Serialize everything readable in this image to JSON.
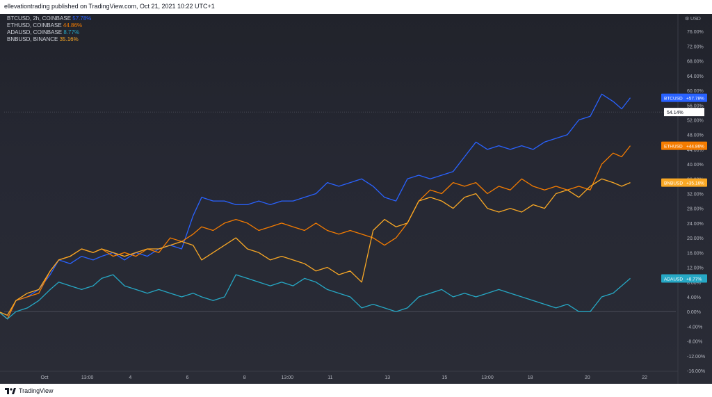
{
  "header": {
    "title": "ellevationtrading published on TradingView.com, Oct 21, 2021 10:22 UTC+1"
  },
  "footer": {
    "brand": "TradingView"
  },
  "legend": [
    {
      "symbol": "BTCUSD, 2h, COINBASE",
      "value": "57.78%",
      "color": "#2962ff"
    },
    {
      "symbol": "ETHUSD, COINBASE",
      "value": "44.86%",
      "color": "#f57c00"
    },
    {
      "symbol": "ADAUSD, COINBASE",
      "value": "8.77%",
      "color": "#26a8c5"
    },
    {
      "symbol": "BNBUSD, BINANCE",
      "value": "35.16%",
      "color": "#f9a825"
    }
  ],
  "price_axis": {
    "currency": "USD",
    "current_marker": "54.14%"
  },
  "chart_data": {
    "type": "line",
    "title": "",
    "ylabel": "",
    "xlabel": "",
    "y_unit": "%",
    "ylim": [
      -16,
      80
    ],
    "y_ticks": [
      76,
      72,
      68,
      64,
      60,
      56,
      52,
      48,
      44,
      40,
      36,
      32,
      28,
      24,
      20,
      16,
      12,
      8,
      4,
      0,
      -4,
      -8,
      -12,
      -16
    ],
    "y_tick_labels": [
      "76.00%",
      "72.00%",
      "68.00%",
      "64.00%",
      "60.00%",
      "56.00%",
      "52.00%",
      "48.00%",
      "44.00%",
      "40.00%",
      "36.00%",
      "32.00%",
      "28.00%",
      "24.00%",
      "20.00%",
      "16.00%",
      "12.00%",
      "8.00%",
      "4.00%",
      "0.00%",
      "-4.00%",
      "-8.00%",
      "-12.00%",
      "-16.00%"
    ],
    "x_domain": [
      0,
      22.6
    ],
    "x_ticks": [
      {
        "x": 1.6,
        "label": "Oct"
      },
      {
        "x": 3.1,
        "label": "13:00"
      },
      {
        "x": 4.6,
        "label": "4"
      },
      {
        "x": 6.6,
        "label": "6"
      },
      {
        "x": 8.6,
        "label": "8"
      },
      {
        "x": 10.1,
        "label": "13:00"
      },
      {
        "x": 11.6,
        "label": "11"
      },
      {
        "x": 13.6,
        "label": "13"
      },
      {
        "x": 15.6,
        "label": "15"
      },
      {
        "x": 17.1,
        "label": "13:00"
      },
      {
        "x": 18.6,
        "label": "18"
      },
      {
        "x": 20.6,
        "label": "20"
      },
      {
        "x": 22.6,
        "label": "22"
      }
    ],
    "grid": false,
    "legend_position": "top-left",
    "series": [
      {
        "name": "BTCUSD",
        "color": "#2962ff",
        "last_label": "+57.78%",
        "values": [
          [
            0,
            0
          ],
          [
            0.3,
            -2
          ],
          [
            0.6,
            3
          ],
          [
            1.0,
            4
          ],
          [
            1.4,
            6
          ],
          [
            1.8,
            10
          ],
          [
            2.1,
            14
          ],
          [
            2.5,
            13
          ],
          [
            2.9,
            15
          ],
          [
            3.3,
            14
          ],
          [
            3.6,
            15
          ],
          [
            4.0,
            16
          ],
          [
            4.4,
            14
          ],
          [
            4.8,
            16
          ],
          [
            5.2,
            15
          ],
          [
            5.6,
            17
          ],
          [
            6.0,
            18
          ],
          [
            6.4,
            17
          ],
          [
            6.8,
            26
          ],
          [
            7.1,
            31
          ],
          [
            7.5,
            30
          ],
          [
            7.9,
            30
          ],
          [
            8.3,
            29
          ],
          [
            8.7,
            29
          ],
          [
            9.1,
            30
          ],
          [
            9.5,
            29
          ],
          [
            9.9,
            30
          ],
          [
            10.3,
            30
          ],
          [
            10.7,
            31
          ],
          [
            11.1,
            32
          ],
          [
            11.5,
            35
          ],
          [
            11.9,
            34
          ],
          [
            12.3,
            35
          ],
          [
            12.7,
            36
          ],
          [
            13.1,
            34
          ],
          [
            13.5,
            31
          ],
          [
            13.9,
            30
          ],
          [
            14.3,
            36
          ],
          [
            14.7,
            37
          ],
          [
            15.1,
            36
          ],
          [
            15.5,
            37
          ],
          [
            15.9,
            38
          ],
          [
            16.3,
            42
          ],
          [
            16.7,
            46
          ],
          [
            17.1,
            44
          ],
          [
            17.5,
            45
          ],
          [
            17.9,
            44
          ],
          [
            18.3,
            45
          ],
          [
            18.7,
            44
          ],
          [
            19.1,
            46
          ],
          [
            19.5,
            47
          ],
          [
            19.9,
            48
          ],
          [
            20.3,
            52
          ],
          [
            20.7,
            53
          ],
          [
            21.1,
            59
          ],
          [
            21.5,
            57
          ],
          [
            21.8,
            55
          ],
          [
            22.1,
            58
          ]
        ]
      },
      {
        "name": "ETHUSD",
        "color": "#f57c00",
        "last_label": "+44.86%",
        "values": [
          [
            0,
            0
          ],
          [
            0.3,
            -2
          ],
          [
            0.6,
            3
          ],
          [
            1.0,
            4
          ],
          [
            1.4,
            5
          ],
          [
            1.8,
            11
          ],
          [
            2.1,
            14
          ],
          [
            2.5,
            15
          ],
          [
            2.9,
            17
          ],
          [
            3.3,
            16
          ],
          [
            3.6,
            17
          ],
          [
            4.0,
            15
          ],
          [
            4.4,
            16
          ],
          [
            4.8,
            15
          ],
          [
            5.2,
            17
          ],
          [
            5.6,
            16
          ],
          [
            6.0,
            20
          ],
          [
            6.4,
            19
          ],
          [
            6.8,
            21
          ],
          [
            7.1,
            23
          ],
          [
            7.5,
            22
          ],
          [
            7.9,
            24
          ],
          [
            8.3,
            25
          ],
          [
            8.7,
            24
          ],
          [
            9.1,
            22
          ],
          [
            9.5,
            23
          ],
          [
            9.9,
            24
          ],
          [
            10.3,
            23
          ],
          [
            10.7,
            22
          ],
          [
            11.1,
            24
          ],
          [
            11.5,
            22
          ],
          [
            11.9,
            21
          ],
          [
            12.3,
            22
          ],
          [
            12.7,
            21
          ],
          [
            13.1,
            20
          ],
          [
            13.5,
            18
          ],
          [
            13.9,
            20
          ],
          [
            14.3,
            24
          ],
          [
            14.7,
            30
          ],
          [
            15.1,
            33
          ],
          [
            15.5,
            32
          ],
          [
            15.9,
            35
          ],
          [
            16.3,
            34
          ],
          [
            16.7,
            35
          ],
          [
            17.1,
            32
          ],
          [
            17.5,
            34
          ],
          [
            17.9,
            33
          ],
          [
            18.3,
            36
          ],
          [
            18.7,
            34
          ],
          [
            19.1,
            33
          ],
          [
            19.5,
            34
          ],
          [
            19.9,
            33
          ],
          [
            20.3,
            34
          ],
          [
            20.7,
            33
          ],
          [
            21.1,
            40
          ],
          [
            21.5,
            43
          ],
          [
            21.8,
            42
          ],
          [
            22.1,
            45
          ]
        ]
      },
      {
        "name": "ADAUSD",
        "color": "#26a8c5",
        "last_label": "+8.77%",
        "values": [
          [
            0,
            0
          ],
          [
            0.3,
            -2
          ],
          [
            0.6,
            0
          ],
          [
            1.0,
            1
          ],
          [
            1.4,
            3
          ],
          [
            1.8,
            6
          ],
          [
            2.1,
            8
          ],
          [
            2.5,
            7
          ],
          [
            2.9,
            6
          ],
          [
            3.3,
            7
          ],
          [
            3.6,
            9
          ],
          [
            4.0,
            10
          ],
          [
            4.4,
            7
          ],
          [
            4.8,
            6
          ],
          [
            5.2,
            5
          ],
          [
            5.6,
            6
          ],
          [
            6.0,
            5
          ],
          [
            6.4,
            4
          ],
          [
            6.8,
            5
          ],
          [
            7.1,
            4
          ],
          [
            7.5,
            3
          ],
          [
            7.9,
            4
          ],
          [
            8.3,
            10
          ],
          [
            8.7,
            9
          ],
          [
            9.1,
            8
          ],
          [
            9.5,
            7
          ],
          [
            9.9,
            8
          ],
          [
            10.3,
            7
          ],
          [
            10.7,
            9
          ],
          [
            11.1,
            8
          ],
          [
            11.5,
            6
          ],
          [
            11.9,
            5
          ],
          [
            12.3,
            4
          ],
          [
            12.7,
            1
          ],
          [
            13.1,
            2
          ],
          [
            13.5,
            1
          ],
          [
            13.9,
            0
          ],
          [
            14.3,
            1
          ],
          [
            14.7,
            4
          ],
          [
            15.1,
            5
          ],
          [
            15.5,
            6
          ],
          [
            15.9,
            4
          ],
          [
            16.3,
            5
          ],
          [
            16.7,
            4
          ],
          [
            17.1,
            5
          ],
          [
            17.5,
            6
          ],
          [
            17.9,
            5
          ],
          [
            18.3,
            4
          ],
          [
            18.7,
            3
          ],
          [
            19.1,
            2
          ],
          [
            19.5,
            1
          ],
          [
            19.9,
            2
          ],
          [
            20.3,
            0
          ],
          [
            20.7,
            0
          ],
          [
            21.1,
            4
          ],
          [
            21.5,
            5
          ],
          [
            21.8,
            7
          ],
          [
            22.1,
            9
          ]
        ]
      },
      {
        "name": "BNBUSD",
        "color": "#f9a825",
        "last_label": "+35.16%",
        "values": [
          [
            0,
            0
          ],
          [
            0.3,
            -1
          ],
          [
            0.6,
            3
          ],
          [
            1.0,
            5
          ],
          [
            1.4,
            6
          ],
          [
            1.8,
            11
          ],
          [
            2.1,
            14
          ],
          [
            2.5,
            15
          ],
          [
            2.9,
            17
          ],
          [
            3.3,
            16
          ],
          [
            3.6,
            17
          ],
          [
            4.0,
            16
          ],
          [
            4.4,
            15
          ],
          [
            4.8,
            16
          ],
          [
            5.2,
            17
          ],
          [
            5.6,
            17
          ],
          [
            6.0,
            18
          ],
          [
            6.4,
            19
          ],
          [
            6.8,
            18
          ],
          [
            7.1,
            14
          ],
          [
            7.5,
            16
          ],
          [
            7.9,
            18
          ],
          [
            8.3,
            20
          ],
          [
            8.7,
            17
          ],
          [
            9.1,
            16
          ],
          [
            9.5,
            14
          ],
          [
            9.9,
            15
          ],
          [
            10.3,
            14
          ],
          [
            10.7,
            13
          ],
          [
            11.1,
            11
          ],
          [
            11.5,
            12
          ],
          [
            11.9,
            10
          ],
          [
            12.3,
            11
          ],
          [
            12.7,
            8
          ],
          [
            13.1,
            22
          ],
          [
            13.5,
            25
          ],
          [
            13.9,
            23
          ],
          [
            14.3,
            24
          ],
          [
            14.7,
            30
          ],
          [
            15.1,
            31
          ],
          [
            15.5,
            30
          ],
          [
            15.9,
            28
          ],
          [
            16.3,
            31
          ],
          [
            16.7,
            32
          ],
          [
            17.1,
            28
          ],
          [
            17.5,
            27
          ],
          [
            17.9,
            28
          ],
          [
            18.3,
            27
          ],
          [
            18.7,
            29
          ],
          [
            19.1,
            28
          ],
          [
            19.5,
            32
          ],
          [
            19.9,
            33
          ],
          [
            20.3,
            31
          ],
          [
            20.7,
            34
          ],
          [
            21.1,
            36
          ],
          [
            21.5,
            35
          ],
          [
            21.8,
            34
          ],
          [
            22.1,
            35
          ]
        ]
      }
    ]
  }
}
